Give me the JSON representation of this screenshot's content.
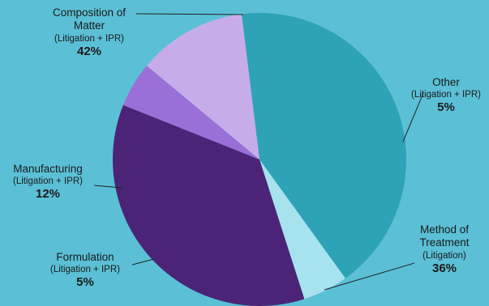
{
  "chart_data": {
    "type": "pie",
    "title": "",
    "slices": [
      {
        "id": "composition",
        "name": "Composition of Matter",
        "name_lines": [
          "Composition of",
          "Matter"
        ],
        "subtitle": "(Litigation + IPR)",
        "value": 42,
        "label": "42%",
        "color": "#2ea2b6"
      },
      {
        "id": "other",
        "name": "Other",
        "name_lines": [
          "Other"
        ],
        "subtitle": "(Litigation + IPR)",
        "value": 5,
        "label": "5%",
        "color": "#a6e3ee"
      },
      {
        "id": "method",
        "name": "Method of Treatment",
        "name_lines": [
          "Method of",
          "Treatment"
        ],
        "subtitle": "(Litigation)",
        "value": 36,
        "label": "36%",
        "color": "#4b2478"
      },
      {
        "id": "formulation",
        "name": "Formulation",
        "name_lines": [
          "Formulation"
        ],
        "subtitle": "(Litigation + IPR)",
        "value": 5,
        "label": "5%",
        "color": "#9a6fd8"
      },
      {
        "id": "manufacturing",
        "name": "Manufacturing",
        "name_lines": [
          "Manufacturing"
        ],
        "subtitle": "(Litigation + IPR)",
        "value": 12,
        "label": "12%",
        "color": "#c6ade9"
      }
    ],
    "grid": false,
    "legend": "none"
  }
}
